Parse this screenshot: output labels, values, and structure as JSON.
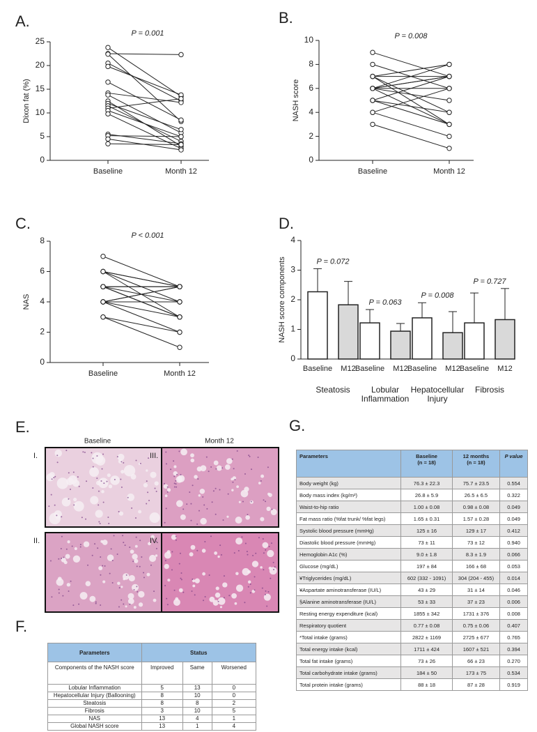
{
  "chart_data": [
    {
      "type": "paired",
      "panel_label": "A.",
      "annotation": "P = 0.001",
      "ylabel": "Dixon fat (%)",
      "categories": [
        "Baseline",
        "Month 12"
      ],
      "values": [
        [
          23.8,
          13.5
        ],
        [
          22.5,
          22.3
        ],
        [
          22.4,
          8.2
        ],
        [
          20.5,
          12.5
        ],
        [
          19.8,
          13.8
        ],
        [
          16.5,
          8.5
        ],
        [
          14.2,
          12.2
        ],
        [
          13.8,
          5.8
        ],
        [
          12.5,
          3.0
        ],
        [
          12.0,
          6.5
        ],
        [
          11.5,
          4.0
        ],
        [
          11.0,
          13.0
        ],
        [
          10.5,
          5.0
        ],
        [
          9.8,
          2.5
        ],
        [
          5.5,
          3.5
        ],
        [
          5.2,
          5.0
        ],
        [
          4.5,
          2.2
        ],
        [
          3.5,
          3.3
        ]
      ],
      "ylim": [
        0,
        25
      ],
      "yticks": [
        0,
        5,
        10,
        15,
        20,
        25
      ]
    },
    {
      "type": "paired",
      "panel_label": "B.",
      "annotation": "P = 0.008",
      "ylabel": "NASH score",
      "categories": [
        "Baseline",
        "Month 12"
      ],
      "values": [
        [
          9,
          7
        ],
        [
          8,
          6
        ],
        [
          7,
          8
        ],
        [
          7,
          4
        ],
        [
          7,
          3
        ],
        [
          6,
          7
        ],
        [
          6,
          6
        ],
        [
          6,
          5
        ],
        [
          6,
          3
        ],
        [
          6,
          8
        ],
        [
          5,
          7
        ],
        [
          5,
          4
        ],
        [
          4,
          2
        ],
        [
          4,
          6
        ],
        [
          3,
          1
        ],
        [
          6,
          7
        ],
        [
          7,
          7
        ],
        [
          5,
          3
        ]
      ],
      "ylim": [
        0,
        10
      ],
      "yticks": [
        0,
        2,
        4,
        6,
        8,
        10
      ]
    },
    {
      "type": "paired",
      "panel_label": "C.",
      "annotation": "P < 0.001",
      "ylabel": "NAS",
      "categories": [
        "Baseline",
        "Month 12"
      ],
      "values": [
        [
          7,
          5
        ],
        [
          6,
          5
        ],
        [
          6,
          3
        ],
        [
          5,
          4
        ],
        [
          5,
          5
        ],
        [
          5,
          3
        ],
        [
          4,
          5
        ],
        [
          4,
          4
        ],
        [
          4,
          2
        ],
        [
          3,
          1
        ],
        [
          4,
          3
        ],
        [
          5,
          5
        ],
        [
          6,
          4
        ],
        [
          4,
          5
        ],
        [
          5,
          3
        ],
        [
          3,
          2
        ],
        [
          4,
          4
        ],
        [
          6,
          5
        ]
      ],
      "ylim": [
        0,
        8
      ],
      "yticks": [
        0,
        2,
        4,
        6,
        8
      ]
    },
    {
      "type": "bar",
      "panel_label": "D.",
      "ylabel": "NASH score components",
      "categories": [
        "Baseline",
        "M12"
      ],
      "colors": [
        "#ffffff",
        "#d9d9d9"
      ],
      "groups": [
        {
          "label_lines": [
            "Steatosis"
          ],
          "annotation": "P = 0.072",
          "values": [
            2.27,
            1.83
          ],
          "errors": [
            0.78,
            0.79
          ]
        },
        {
          "label_lines": [
            "Lobular",
            "Inflammation"
          ],
          "annotation": "P = 0.063",
          "values": [
            1.22,
            0.94
          ],
          "errors": [
            0.45,
            0.26
          ]
        },
        {
          "label_lines": [
            "Hepatocellular",
            "Injury"
          ],
          "annotation": "P = 0.008",
          "values": [
            1.39,
            0.89
          ],
          "errors": [
            0.51,
            0.71
          ]
        },
        {
          "label_lines": [
            "Fibrosis"
          ],
          "annotation": "P = 0.727",
          "values": [
            1.22,
            1.33
          ],
          "errors": [
            1.01,
            1.05
          ]
        }
      ],
      "ylim": [
        0,
        4
      ],
      "yticks": [
        0,
        1,
        2,
        3,
        4
      ]
    }
  ],
  "panel_e": {
    "panel_label": "E.",
    "columns": [
      "Baseline",
      "Month  12"
    ],
    "images": [
      {
        "label": "I."
      },
      {
        "label": "III."
      },
      {
        "label": "II."
      },
      {
        "label": "IV."
      }
    ]
  },
  "table_f": {
    "panel_label": "F.",
    "header": [
      "Parameters",
      "Status"
    ],
    "subheader": [
      "Components of the NASH score",
      "Improved",
      "Same",
      "Worsened"
    ],
    "rows": [
      [
        "Lobular Inflammation",
        5,
        13,
        0
      ],
      [
        "Hepatocellular Injury (Ballooning)",
        8,
        10,
        0
      ],
      [
        "Steatosis",
        8,
        8,
        2
      ],
      [
        "Fibrosis",
        3,
        10,
        5
      ],
      [
        "NAS",
        13,
        4,
        1
      ],
      [
        "Global NASH score",
        13,
        1,
        4
      ]
    ]
  },
  "table_g": {
    "panel_label": "G.",
    "header": [
      [
        "Parameters"
      ],
      [
        "Baseline",
        "(n = 18)"
      ],
      [
        "12 months",
        "(n = 18)"
      ],
      [
        "P value"
      ]
    ],
    "rows": [
      [
        "Body weight (kg)",
        "76.3 ± 22.3",
        "75.7 ± 23.5",
        "0.554"
      ],
      [
        "Body mass index (kg/m²)",
        "26.8 ± 5.9",
        "26.5 ± 6.5",
        "0.322"
      ],
      [
        "Waist-to-hip ratio",
        "1.00 ± 0.08",
        "0.98 ± 0.08",
        "0.049"
      ],
      [
        "Fat mass ratio (%fat trunk/ %fat legs)",
        "1.65 ± 0.31",
        "1.57 ± 0.28",
        "0.049"
      ],
      [
        "Systolic blood pressure (mmHg)",
        "125 ± 16",
        "129 ± 17",
        "0.412"
      ],
      [
        "Diastolic blood pressure (mmHg)",
        "73 ± 11",
        "73 ± 12",
        "0.940"
      ],
      [
        "Hemoglobin A1c (%)",
        "9.0 ± 1.8",
        "8.3 ± 1.9",
        "0.066"
      ],
      [
        "Glucose (mg/dL)",
        "197 ± 84",
        "166 ± 68",
        "0.053"
      ],
      [
        "¥Triglycerides (mg/dL)",
        "602 (332 - 1091)",
        "304 (204 - 455)",
        "0.014"
      ],
      [
        "¥Aspartate aminotransferase (IU/L)",
        "43 ± 29",
        "31 ± 14",
        "0.046"
      ],
      [
        "§Alanine aminotransferase (IU/L)",
        "53 ± 33",
        "37 ± 23",
        "0.006"
      ],
      [
        "Resting energy expenditure (kcal)",
        "1855 ± 342",
        "1731 ± 376",
        "0.008"
      ],
      [
        "Respiratory quotient",
        "0.77 ± 0.08",
        "0.75 ± 0.06",
        "0.407"
      ],
      [
        "*Total intake (grams)",
        "2822 ± 1169",
        "2725 ± 677",
        "0.765"
      ],
      [
        "Total energy intake (kcal)",
        "1711 ± 424",
        "1607 ± 521",
        "0.394"
      ],
      [
        "Total fat intake (grams)",
        "73 ± 26",
        "66 ± 23",
        "0.270"
      ],
      [
        "Total carbohydrate intake (grams)",
        "184 ± 50",
        "173 ± 75",
        "0.534"
      ],
      [
        "Total protein intake (grams)",
        "88 ± 18",
        "87 ± 28",
        "0.919"
      ]
    ]
  }
}
